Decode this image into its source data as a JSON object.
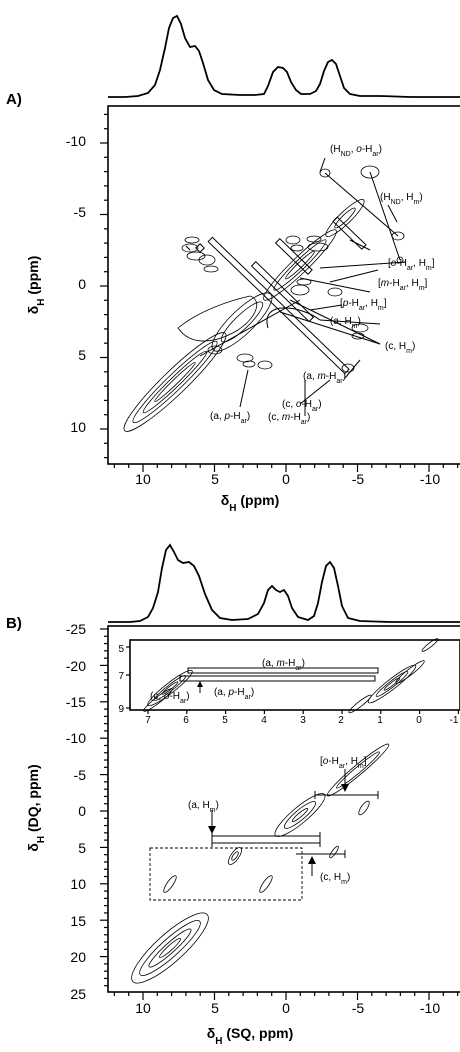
{
  "panels": [
    {
      "label": "A)",
      "xlabel": {
        "main": "δ",
        "sub": "H",
        "rest": " (ppm)"
      },
      "ylabel": {
        "main": "δ",
        "sub": "H",
        "rest": " (ppm)"
      },
      "annotations": [
        {
          "parts": [
            [
              "(H",
              "n"
            ],
            [
              "ND",
              "sub"
            ],
            [
              ", ",
              "n"
            ],
            [
              "o",
              "i"
            ],
            [
              "-H",
              "n"
            ],
            [
              "ar",
              "sub"
            ],
            [
              ")",
              "n"
            ]
          ]
        },
        {
          "parts": [
            [
              "(H",
              "n"
            ],
            [
              "ND",
              "sub"
            ],
            [
              ", H",
              "n"
            ],
            [
              "m",
              "sub"
            ],
            [
              ")",
              "n"
            ]
          ]
        },
        {
          "parts": [
            [
              "[",
              "n"
            ],
            [
              "o",
              "i"
            ],
            [
              "-H",
              "n"
            ],
            [
              "ar",
              "sub"
            ],
            [
              ", H",
              "n"
            ],
            [
              "m",
              "sub"
            ],
            [
              "]",
              "n"
            ]
          ]
        },
        {
          "parts": [
            [
              "[",
              "n"
            ],
            [
              "m",
              "i"
            ],
            [
              "-H",
              "n"
            ],
            [
              "ar",
              "sub"
            ],
            [
              ", H",
              "n"
            ],
            [
              "m",
              "sub"
            ],
            [
              "]",
              "n"
            ]
          ]
        },
        {
          "parts": [
            [
              "[",
              "n"
            ],
            [
              "p",
              "i"
            ],
            [
              "-H",
              "n"
            ],
            [
              "ar",
              "sub"
            ],
            [
              ", H",
              "n"
            ],
            [
              "m",
              "sub"
            ],
            [
              "]",
              "n"
            ]
          ]
        },
        {
          "parts": [
            [
              "(a, H",
              "n"
            ],
            [
              "m",
              "sub"
            ],
            [
              ")",
              "n"
            ]
          ]
        },
        {
          "parts": [
            [
              "(c, H",
              "n"
            ],
            [
              "m",
              "sub"
            ],
            [
              ")",
              "n"
            ]
          ]
        },
        {
          "parts": [
            [
              "(a, ",
              "n"
            ],
            [
              "m",
              "i"
            ],
            [
              "-H",
              "n"
            ],
            [
              "ar",
              "sub"
            ],
            [
              ")",
              "n"
            ]
          ]
        },
        {
          "parts": [
            [
              "(a, ",
              "n"
            ],
            [
              "p",
              "i"
            ],
            [
              "-H",
              "n"
            ],
            [
              "ar",
              "sub"
            ],
            [
              ")",
              "n"
            ]
          ]
        },
        {
          "parts": [
            [
              "(c, ",
              "n"
            ],
            [
              "o",
              "i"
            ],
            [
              "-H",
              "n"
            ],
            [
              "ar",
              "sub"
            ],
            [
              ")",
              "n"
            ]
          ]
        },
        {
          "parts": [
            [
              "(c, ",
              "n"
            ],
            [
              "m",
              "i"
            ],
            [
              "-H",
              "n"
            ],
            [
              "ar",
              "sub"
            ],
            [
              ")",
              "n"
            ]
          ]
        }
      ]
    },
    {
      "label": "B)",
      "xlabel": {
        "main": "δ",
        "sub": "H",
        "rest": " (SQ, ppm)"
      },
      "ylabel": {
        "main": "δ",
        "sub": "H",
        "rest": " (DQ, ppm)"
      },
      "annotations": [
        {
          "parts": [
            [
              "[",
              "n"
            ],
            [
              "o",
              "i"
            ],
            [
              "-H",
              "n"
            ],
            [
              "ar",
              "sub"
            ],
            [
              ", H",
              "n"
            ],
            [
              "m",
              "sub"
            ],
            [
              "]",
              "n"
            ]
          ]
        },
        {
          "parts": [
            [
              "(a, H",
              "n"
            ],
            [
              "m",
              "sub"
            ],
            [
              ")",
              "n"
            ]
          ]
        },
        {
          "parts": [
            [
              "(c, H",
              "n"
            ],
            [
              "m",
              "sub"
            ],
            [
              ")",
              "n"
            ]
          ]
        }
      ],
      "inset_annotations": [
        {
          "parts": [
            [
              "(a, ",
              "n"
            ],
            [
              "m",
              "i"
            ],
            [
              "-H",
              "n"
            ],
            [
              "ar",
              "sub"
            ],
            [
              ")",
              "n"
            ]
          ]
        },
        {
          "parts": [
            [
              "(c, ",
              "n"
            ],
            [
              "o",
              "i"
            ],
            [
              "-H",
              "n"
            ],
            [
              "ar",
              "sub"
            ],
            [
              ")",
              "n"
            ]
          ]
        },
        {
          "parts": [
            [
              "(a, ",
              "n"
            ],
            [
              "p",
              "i"
            ],
            [
              "-H",
              "n"
            ],
            [
              "ar",
              "sub"
            ],
            [
              ")",
              "n"
            ]
          ]
        }
      ]
    }
  ],
  "chart_data": [
    {
      "type": "scatter",
      "subtype": "2D NMR contour plot with 1D projection",
      "title": "",
      "xlabel": "δH (ppm)",
      "ylabel": "δH (ppm)",
      "xlim": [
        12.5,
        -12.5
      ],
      "ylim": [
        12,
        -12.5
      ],
      "x_ticks": [
        "10",
        "5",
        "0",
        "-5",
        "-10"
      ],
      "y_ticks": [
        "-10",
        "-5",
        "0",
        "5",
        "10"
      ],
      "projection_peaks_ppm": [
        8.0,
        6.4,
        1.0,
        -0.2,
        -3.2
      ],
      "diagonal": [
        [
          10.5,
          10.5
        ],
        [
          -4.5,
          -4.5
        ]
      ],
      "cross_peak_lines": [
        {
          "x": [
            7.5,
            -2.4
          ],
          "y": [
            -4.0,
            5.5
          ]
        },
        {
          "x": [
            6.5,
            -0.3
          ],
          "y": [
            -4.3,
            2.0
          ]
        },
        {
          "x": [
            -1.5,
            -3.7
          ],
          "y": [
            1.0,
            3.3
          ]
        },
        {
          "x": [
            5.3,
            -1.7
          ],
          "y": [
            -3.7,
            3.4
          ]
        },
        {
          "x": [
            -3.8,
            -6.6
          ],
          "y": [
            -9.0,
            -3.8
          ]
        },
        {
          "x": [
            -0.8,
            -5.5
          ],
          "y": [
            -9.0,
            -5.5
          ]
        },
        {
          "x": [
            -3.2,
            5.3
          ],
          "y": [
            -2.0,
            6.0
          ]
        }
      ],
      "series": [
        {
          "name": "(HND, o-Har)",
          "x": [
            -3.8
          ],
          "y": [
            -9.0
          ]
        },
        {
          "name": "(HND, Hm)",
          "x": [
            -6.6
          ],
          "y": [
            -3.8
          ]
        },
        {
          "name": "[o-Har, Hm]",
          "x": [
            -5.5
          ],
          "y": [
            -0.5
          ]
        },
        {
          "name": "[m-Har, Hm]",
          "x": [
            -3.4
          ],
          "y": [
            0.8
          ]
        },
        {
          "name": "[p-Har, Hm]",
          "x": [
            -3.0
          ],
          "y": [
            1.5
          ]
        },
        {
          "name": "(a, Hm)",
          "x": [
            -3.3
          ],
          "y": [
            3.2
          ]
        },
        {
          "name": "(c, Hm)",
          "x": [
            -3.2
          ],
          "y": [
            6.0
          ]
        },
        {
          "name": "(a, m-Har)",
          "x": [
            0.5
          ],
          "y": [
            6.5
          ]
        },
        {
          "name": "(a, p-Har)",
          "x": [
            5.3
          ],
          "y": [
            3.4
          ]
        },
        {
          "name": "(c, o-Har)",
          "x": [
            0.3
          ],
          "y": [
            7.0
          ]
        },
        {
          "name": "(c, m-Har)",
          "x": [
            1.5
          ],
          "y": [
            7.5
          ]
        }
      ]
    },
    {
      "type": "scatter",
      "subtype": "2D DQ-SQ NMR contour plot with 1D projection",
      "title": "",
      "xlabel": "δH (SQ, ppm)",
      "ylabel": "δH (DQ, ppm)",
      "xlim": [
        12.5,
        -12.5
      ],
      "ylim": [
        25,
        -25
      ],
      "x_ticks": [
        "10",
        "5",
        "0",
        "-5",
        "-10"
      ],
      "y_ticks": [
        "-25",
        "-20",
        "-15",
        "-10",
        "-5",
        "0",
        "5",
        "10",
        "15",
        "20",
        "25"
      ],
      "projection_peaks_ppm": [
        8.0,
        6.5,
        1.0,
        -0.2,
        -3.2
      ],
      "diagonal": [
        [
          10.5,
          21.0
        ],
        [
          -5.0,
          -10.0
        ]
      ],
      "cross_peak_lines": [
        {
          "x": [
            -0.4,
            -5.0
          ],
          "y": [
            -2.7,
            -2.7
          ]
        },
        {
          "x": [
            3.8,
            -2.5
          ],
          "y": [
            4.3,
            4.3
          ]
        },
        {
          "x": [
            3.8,
            -2.0
          ],
          "y": [
            3.6,
            3.6
          ]
        },
        {
          "x": [
            -1.0,
            -5.0
          ],
          "y": [
            5.6,
            5.6
          ]
        }
      ],
      "inset": {
        "xlim": [
          7.5,
          -1.0
        ],
        "ylim": [
          5,
          9
        ],
        "x_ticks": [
          "7",
          "6",
          "5",
          "4",
          "3",
          "2",
          "1",
          "0",
          "-1"
        ],
        "y_ticks": [
          "5",
          "7",
          "9"
        ],
        "pairs": [
          {
            "name": "(a, m-Har)",
            "x": [
              6.0,
              0.8
            ],
            "y": [
              6.8,
              6.8
            ]
          },
          {
            "name": "(c, o-Har)",
            "x": [
              6.6,
              0.5
            ],
            "y": [
              7.0,
              7.0
            ]
          },
          {
            "name": "(a, p-Har)",
            "x": [
              5.8,
              0.6
            ],
            "y": [
              7.4,
              7.4
            ]
          }
        ]
      },
      "series": [
        {
          "name": "[o-Har, Hm]",
          "x": [
            -2.5
          ],
          "y": [
            -2.7
          ]
        },
        {
          "name": "(a, Hm)",
          "x": [
            2.0
          ],
          "y": [
            4.3
          ]
        },
        {
          "name": "(c, Hm)",
          "x": [
            -1.0
          ],
          "y": [
            5.6
          ]
        }
      ]
    }
  ]
}
